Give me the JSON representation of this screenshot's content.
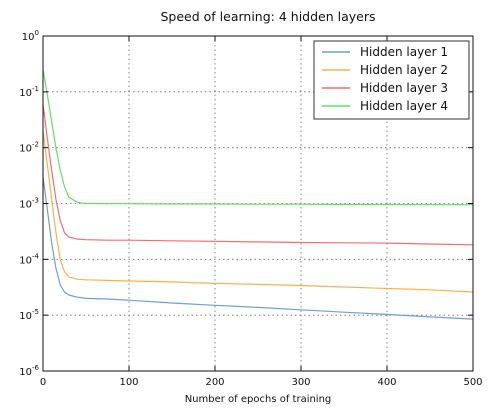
{
  "chart_data": {
    "type": "line",
    "title": "Speed of learning: 4 hidden layers",
    "xlabel": "Number of epochs of training",
    "ylabel": "",
    "xlim": [
      0,
      500
    ],
    "ylim": [
      1e-06,
      1
    ],
    "yscale": "log",
    "grid": true,
    "legend_position": "top-right",
    "x_ticks": [
      0,
      100,
      200,
      300,
      400,
      500
    ],
    "y_ticks": [
      {
        "value": 1e-06,
        "base": "10",
        "exp": "-6"
      },
      {
        "value": 1e-05,
        "base": "10",
        "exp": "-5"
      },
      {
        "value": 0.0001,
        "base": "10",
        "exp": "-4"
      },
      {
        "value": 0.001,
        "base": "10",
        "exp": "-3"
      },
      {
        "value": 0.01,
        "base": "10",
        "exp": "-2"
      },
      {
        "value": 0.1,
        "base": "10",
        "exp": "-1"
      },
      {
        "value": 1,
        "base": "10",
        "exp": "0"
      }
    ],
    "series": [
      {
        "name": "Hidden layer 1",
        "color": "#6f9fd0",
        "x": [
          0,
          5,
          10,
          15,
          20,
          25,
          30,
          40,
          50,
          75,
          100,
          150,
          200,
          250,
          300,
          350,
          400,
          450,
          500
        ],
        "y": [
          0.003,
          0.0008,
          0.0002,
          7e-05,
          3.5e-05,
          2.6e-05,
          2.3e-05,
          2.1e-05,
          2e-05,
          1.95e-05,
          1.85e-05,
          1.65e-05,
          1.5e-05,
          1.38e-05,
          1.25e-05,
          1.13e-05,
          1.03e-05,
          9.3e-06,
          8.5e-06
        ]
      },
      {
        "name": "Hidden layer 2",
        "color": "#f5b24d",
        "x": [
          0,
          5,
          10,
          15,
          20,
          25,
          30,
          40,
          50,
          75,
          100,
          150,
          200,
          250,
          300,
          350,
          400,
          450,
          500
        ],
        "y": [
          0.02,
          0.005,
          0.0012,
          0.0003,
          0.0001,
          6e-05,
          4.8e-05,
          4.4e-05,
          4.3e-05,
          4.2e-05,
          4.1e-05,
          3.95e-05,
          3.7e-05,
          3.55e-05,
          3.4e-05,
          3.2e-05,
          3e-05,
          2.85e-05,
          2.6e-05
        ]
      },
      {
        "name": "Hidden layer 3",
        "color": "#ef6f6f",
        "x": [
          0,
          5,
          10,
          15,
          20,
          25,
          30,
          40,
          50,
          75,
          100,
          150,
          200,
          250,
          300,
          350,
          400,
          450,
          500
        ],
        "y": [
          0.06,
          0.015,
          0.004,
          0.0012,
          0.0005,
          0.0003,
          0.00025,
          0.00023,
          0.000225,
          0.00022,
          0.00022,
          0.000215,
          0.00021,
          0.000205,
          0.0002,
          0.000198,
          0.000195,
          0.000188,
          0.000182
        ]
      },
      {
        "name": "Hidden layer 4",
        "color": "#66dd66",
        "x": [
          0,
          5,
          10,
          15,
          20,
          25,
          30,
          40,
          50,
          75,
          100,
          150,
          200,
          250,
          300,
          350,
          400,
          450,
          500
        ],
        "y": [
          0.25,
          0.09,
          0.03,
          0.01,
          0.004,
          0.002,
          0.0013,
          0.00105,
          0.001,
          0.00099,
          0.00099,
          0.00098,
          0.00098,
          0.00097,
          0.00097,
          0.00096,
          0.00096,
          0.00095,
          0.00095
        ]
      }
    ]
  }
}
